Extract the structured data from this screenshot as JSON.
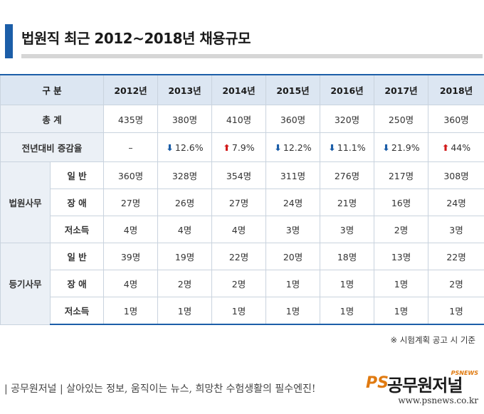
{
  "title": "법원직 최근 2012~2018년 채용규모",
  "table": {
    "header": {
      "label": "구  분",
      "years": [
        "2012년",
        "2013년",
        "2014년",
        "2015년",
        "2016년",
        "2017년",
        "2018년"
      ]
    },
    "total": {
      "label": "총  계",
      "values": [
        "435명",
        "380명",
        "410명",
        "360명",
        "320명",
        "250명",
        "360명"
      ]
    },
    "change": {
      "label": "전년대비 증감율",
      "values": [
        {
          "dir": "",
          "text": "–"
        },
        {
          "dir": "down",
          "text": "12.6%"
        },
        {
          "dir": "up",
          "text": "7.9%"
        },
        {
          "dir": "down",
          "text": "12.2%"
        },
        {
          "dir": "down",
          "text": "11.1%"
        },
        {
          "dir": "down",
          "text": "21.9%"
        },
        {
          "dir": "up",
          "text": "44%"
        }
      ]
    },
    "groups": [
      {
        "label": "법원사무",
        "rows": [
          {
            "label": "일  반",
            "values": [
              "360명",
              "328명",
              "354명",
              "311명",
              "276명",
              "217명",
              "308명"
            ]
          },
          {
            "label": "장  애",
            "values": [
              "27명",
              "26명",
              "27명",
              "24명",
              "21명",
              "16명",
              "24명"
            ]
          },
          {
            "label": "저소득",
            "values": [
              "4명",
              "4명",
              "4명",
              "3명",
              "3명",
              "2명",
              "3명"
            ]
          }
        ]
      },
      {
        "label": "등기사무",
        "rows": [
          {
            "label": "일  반",
            "values": [
              "39명",
              "19명",
              "22명",
              "20명",
              "18명",
              "13명",
              "22명"
            ]
          },
          {
            "label": "장  애",
            "values": [
              "4명",
              "2명",
              "2명",
              "1명",
              "1명",
              "1명",
              "2명"
            ]
          },
          {
            "label": "저소득",
            "values": [
              "1명",
              "1명",
              "1명",
              "1명",
              "1명",
              "1명",
              "1명"
            ]
          }
        ]
      }
    ]
  },
  "note": "※ 시험계획 공고 시 기준",
  "footer": {
    "text": "| 공무원저널 | 살아있는 정보, 움직이는 뉴스, 희망찬 수험생활의 필수엔진!",
    "logo_ps": "PS",
    "logo_main": "공무원저널",
    "logo_tag": "PSNEWS",
    "url": "www.psnews.co.kr"
  },
  "colors": {
    "accent": "#1c5ea8",
    "header_bg": "#dce6f2",
    "up": "#d21b1b",
    "down": "#1c5ea8",
    "logo_orange": "#e07a10"
  }
}
